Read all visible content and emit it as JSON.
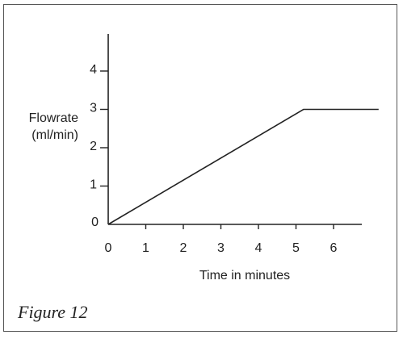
{
  "chart_data": {
    "type": "line",
    "title": "",
    "xlabel": "Time in minutes",
    "ylabel": [
      "Flowrate",
      "(ml/min)"
    ],
    "x_ticks": [
      0,
      1,
      2,
      3,
      4,
      5,
      6
    ],
    "y_ticks": [
      0,
      1,
      2,
      3,
      4
    ],
    "xlim": [
      0,
      7.2
    ],
    "ylim": [
      0,
      5
    ],
    "grid": false,
    "series": [
      {
        "x": [
          0,
          5.2,
          7.2
        ],
        "y": [
          0,
          3,
          3
        ]
      }
    ]
  },
  "figure": {
    "caption": "Figure 12"
  },
  "colors": {
    "line": "#222222",
    "axis": "#222222",
    "border": "#555555"
  }
}
